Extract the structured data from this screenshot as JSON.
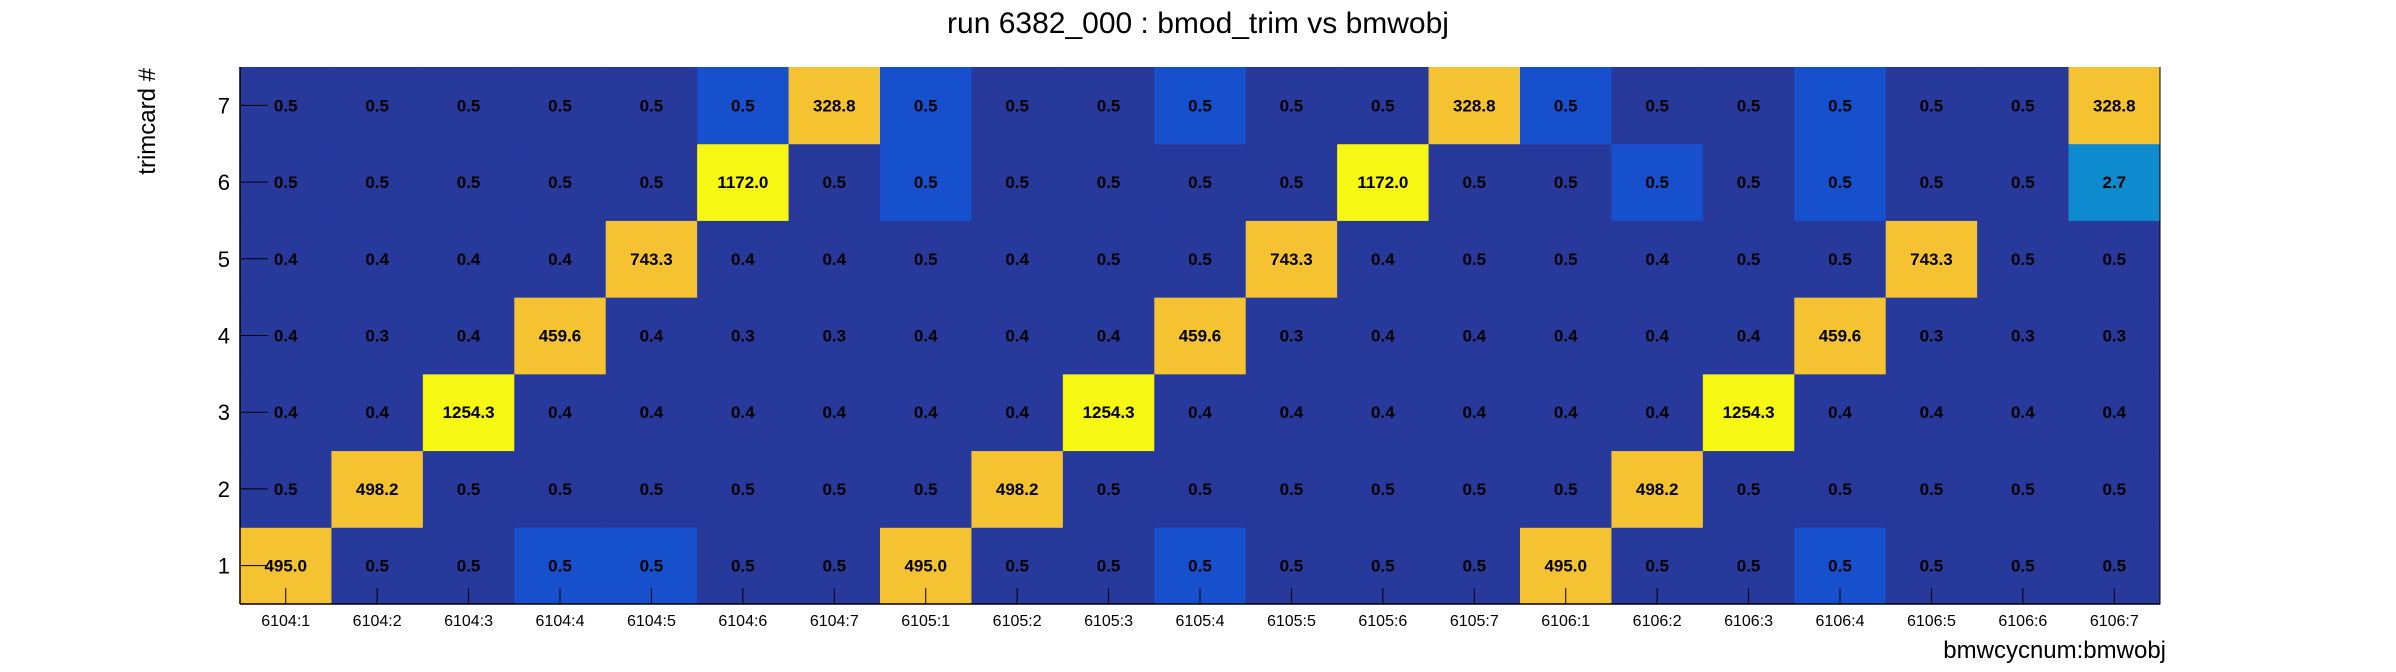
{
  "chart_data": {
    "type": "heatmap",
    "title": "run 6382_000 : bmod_trim vs bmwobj",
    "xlabel": "bmwcycnum:bmwobj",
    "ylabel": "trimcard #",
    "x_categories": [
      "6104:1",
      "6104:2",
      "6104:3",
      "6104:4",
      "6104:5",
      "6104:6",
      "6104:7",
      "6105:1",
      "6105:2",
      "6105:3",
      "6105:4",
      "6105:5",
      "6105:6",
      "6105:7",
      "6106:1",
      "6106:2",
      "6106:3",
      "6106:4",
      "6106:5",
      "6106:6",
      "6106:7"
    ],
    "y_categories": [
      "1",
      "2",
      "3",
      "4",
      "5",
      "6",
      "7"
    ],
    "values": [
      [
        495.0,
        0.5,
        0.5,
        0.5,
        0.5,
        0.5,
        0.5,
        495.0,
        0.5,
        0.5,
        0.5,
        0.5,
        0.5,
        0.5,
        495.0,
        0.5,
        0.5,
        0.5,
        0.5,
        0.5,
        0.5
      ],
      [
        0.5,
        498.2,
        0.5,
        0.5,
        0.5,
        0.5,
        0.5,
        0.5,
        498.2,
        0.5,
        0.5,
        0.5,
        0.5,
        0.5,
        0.5,
        498.2,
        0.5,
        0.5,
        0.5,
        0.5,
        0.5
      ],
      [
        0.4,
        0.4,
        1254.3,
        0.4,
        0.4,
        0.4,
        0.4,
        0.4,
        0.4,
        1254.3,
        0.4,
        0.4,
        0.4,
        0.4,
        0.4,
        0.4,
        1254.3,
        0.4,
        0.4,
        0.4,
        0.4
      ],
      [
        0.4,
        0.3,
        0.4,
        459.6,
        0.4,
        0.3,
        0.3,
        0.4,
        0.4,
        0.4,
        459.6,
        0.3,
        0.4,
        0.4,
        0.4,
        0.4,
        0.4,
        459.6,
        0.3,
        0.3,
        0.3
      ],
      [
        0.4,
        0.4,
        0.4,
        0.4,
        743.3,
        0.4,
        0.4,
        0.5,
        0.4,
        0.5,
        0.5,
        743.3,
        0.4,
        0.5,
        0.5,
        0.4,
        0.5,
        0.5,
        743.3,
        0.5,
        0.5
      ],
      [
        0.5,
        0.5,
        0.5,
        0.5,
        0.5,
        1172.0,
        0.5,
        0.5,
        0.5,
        0.5,
        0.5,
        0.5,
        1172.0,
        0.5,
        0.5,
        0.5,
        0.5,
        0.5,
        0.5,
        0.5,
        2.7
      ],
      [
        0.5,
        0.5,
        0.5,
        0.5,
        0.5,
        0.5,
        328.8,
        0.5,
        0.5,
        0.5,
        0.5,
        0.5,
        0.5,
        328.8,
        0.5,
        0.5,
        0.5,
        0.5,
        0.5,
        0.5,
        328.8
      ]
    ],
    "labels": [
      [
        "495.0",
        "0.5",
        "0.5",
        "0.5",
        "0.5",
        "0.5",
        "0.5",
        "495.0",
        "0.5",
        "0.5",
        "0.5",
        "0.5",
        "0.5",
        "0.5",
        "495.0",
        "0.5",
        "0.5",
        "0.5",
        "0.5",
        "0.5",
        "0.5"
      ],
      [
        "0.5",
        "498.2",
        "0.5",
        "0.5",
        "0.5",
        "0.5",
        "0.5",
        "0.5",
        "498.2",
        "0.5",
        "0.5",
        "0.5",
        "0.5",
        "0.5",
        "0.5",
        "498.2",
        "0.5",
        "0.5",
        "0.5",
        "0.5",
        "0.5"
      ],
      [
        "0.4",
        "0.4",
        "1254.3",
        "0.4",
        "0.4",
        "0.4",
        "0.4",
        "0.4",
        "0.4",
        "1254.3",
        "0.4",
        "0.4",
        "0.4",
        "0.4",
        "0.4",
        "0.4",
        "1254.3",
        "0.4",
        "0.4",
        "0.4",
        "0.4"
      ],
      [
        "0.4",
        "0.3",
        "0.4",
        "459.6",
        "0.4",
        "0.3",
        "0.3",
        "0.4",
        "0.4",
        "0.4",
        "459.6",
        "0.3",
        "0.4",
        "0.4",
        "0.4",
        "0.4",
        "0.4",
        "459.6",
        "0.3",
        "0.3",
        "0.3"
      ],
      [
        "0.4",
        "0.4",
        "0.4",
        "0.4",
        "743.3",
        "0.4",
        "0.4",
        "0.5",
        "0.4",
        "0.5",
        "0.5",
        "743.3",
        "0.4",
        "0.5",
        "0.5",
        "0.4",
        "0.5",
        "0.5",
        "743.3",
        "0.5",
        "0.5"
      ],
      [
        "0.5",
        "0.5",
        "0.5",
        "0.5",
        "0.5",
        "1172.0",
        "0.5",
        "0.5",
        "0.5",
        "0.5",
        "0.5",
        "0.5",
        "1172.0",
        "0.5",
        "0.5",
        "0.5",
        "0.5",
        "0.5",
        "0.5",
        "0.5",
        "2.7"
      ],
      [
        "0.5",
        "0.5",
        "0.5",
        "0.5",
        "0.5",
        "0.5",
        "328.8",
        "0.5",
        "0.5",
        "0.5",
        "0.5",
        "0.5",
        "0.5",
        "328.8",
        "0.5",
        "0.5",
        "0.5",
        "0.5",
        "0.5",
        "0.5",
        "328.8"
      ]
    ],
    "cell_colors": [
      [
        "#f5c332",
        "#27399b",
        "#27399b",
        "#1650cd",
        "#1650cd",
        "#27399b",
        "#27399b",
        "#f5c332",
        "#27399b",
        "#27399b",
        "#1650cd",
        "#27399b",
        "#27399b",
        "#27399b",
        "#f5c332",
        "#27399b",
        "#27399b",
        "#1650cd",
        "#27399b",
        "#27399b",
        "#27399b"
      ],
      [
        "#27399b",
        "#f5c332",
        "#27399b",
        "#27399b",
        "#27399b",
        "#27399b",
        "#27399b",
        "#27399b",
        "#f5c332",
        "#27399b",
        "#27399b",
        "#27399b",
        "#27399b",
        "#27399b",
        "#27399b",
        "#f5c332",
        "#27399b",
        "#27399b",
        "#27399b",
        "#27399b",
        "#27399b"
      ],
      [
        "#27399b",
        "#27399b",
        "#f7f714",
        "#27399b",
        "#27399b",
        "#27399b",
        "#27399b",
        "#27399b",
        "#27399b",
        "#f7f714",
        "#27399b",
        "#27399b",
        "#27399b",
        "#27399b",
        "#27399b",
        "#27399b",
        "#f7f714",
        "#27399b",
        "#27399b",
        "#27399b",
        "#27399b"
      ],
      [
        "#27399b",
        "#27399b",
        "#27399b",
        "#f5c332",
        "#27399b",
        "#27399b",
        "#27399b",
        "#27399b",
        "#27399b",
        "#27399b",
        "#f5c332",
        "#27399b",
        "#27399b",
        "#27399b",
        "#27399b",
        "#27399b",
        "#27399b",
        "#f5c332",
        "#27399b",
        "#27399b",
        "#27399b"
      ],
      [
        "#27399b",
        "#27399b",
        "#27399b",
        "#27399b",
        "#f5c332",
        "#27399b",
        "#27399b",
        "#27399b",
        "#27399b",
        "#27399b",
        "#27399b",
        "#f5c332",
        "#27399b",
        "#27399b",
        "#27399b",
        "#27399b",
        "#27399b",
        "#27399b",
        "#f5c332",
        "#27399b",
        "#27399b"
      ],
      [
        "#27399b",
        "#27399b",
        "#27399b",
        "#27399b",
        "#27399b",
        "#f7f714",
        "#27399b",
        "#1650cd",
        "#27399b",
        "#27399b",
        "#27399b",
        "#27399b",
        "#f7f714",
        "#27399b",
        "#27399b",
        "#1650cd",
        "#27399b",
        "#1650cd",
        "#27399b",
        "#27399b",
        "#0e8bcf"
      ],
      [
        "#27399b",
        "#27399b",
        "#27399b",
        "#27399b",
        "#27399b",
        "#1650cd",
        "#f5c332",
        "#1650cd",
        "#27399b",
        "#27399b",
        "#1650cd",
        "#27399b",
        "#27399b",
        "#f5c332",
        "#1650cd",
        "#27399b",
        "#27399b",
        "#1650cd",
        "#27399b",
        "#27399b",
        "#f5c332"
      ]
    ],
    "grid": false,
    "legend": "none"
  }
}
